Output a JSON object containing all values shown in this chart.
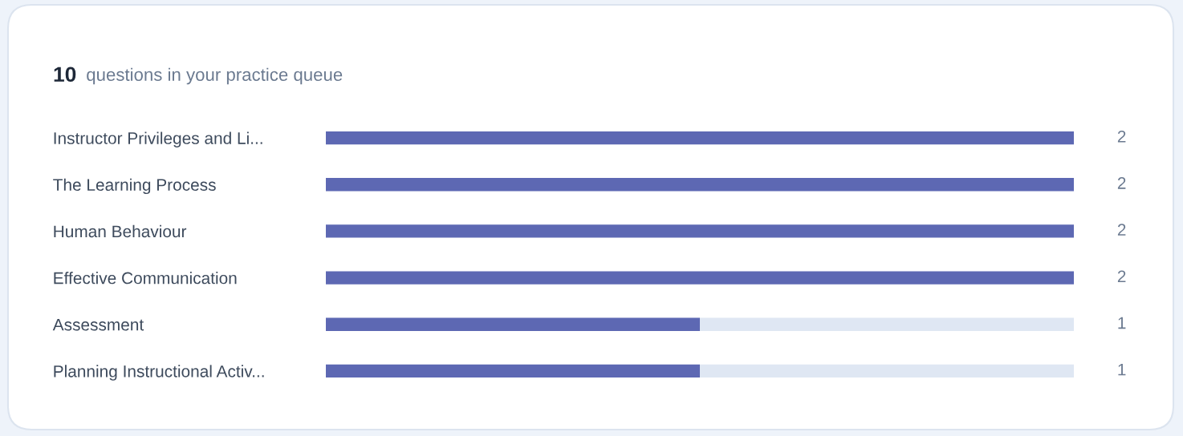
{
  "chart_data": {
    "type": "bar",
    "orientation": "horizontal",
    "stacked": true,
    "title": "10 questions in your practice queue",
    "categories": [
      "Instructor Privileges and Li...",
      "The Learning Process",
      "Human Behaviour",
      "Effective Communication",
      "Assessment",
      "Planning Instructional Activ..."
    ],
    "series": [
      {
        "color": "#5d68b3",
        "values": [
          2,
          2,
          2,
          2,
          1,
          1
        ],
        "value_labels": [
          "2",
          "2",
          "2",
          "2",
          "1",
          "1"
        ]
      },
      {
        "color": "#dfe7f3",
        "values": [
          0,
          0,
          0,
          0,
          1,
          1
        ]
      }
    ],
    "grid": false,
    "legend": false
  }
}
